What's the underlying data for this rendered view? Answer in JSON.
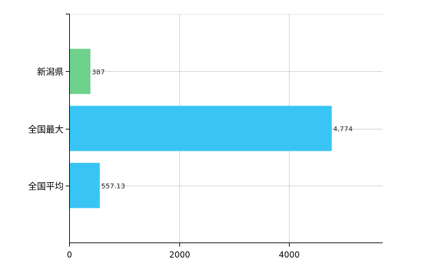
{
  "chart_data": {
    "type": "bar",
    "orientation": "horizontal",
    "categories": [
      "新潟県",
      "全国最大",
      "全国平均"
    ],
    "values": [
      387,
      4774,
      557.13
    ],
    "value_labels": [
      "387",
      "4,774",
      "557.13"
    ],
    "bar_colors": [
      "#6fd18c",
      "#38c4f5",
      "#38c4f5"
    ],
    "xlim": [
      0,
      5700
    ],
    "xticks": [
      0,
      2000,
      4000
    ],
    "xtick_labels": [
      "0",
      "2000",
      "4000"
    ],
    "grid": true,
    "legend": "none",
    "title": "",
    "xlabel": "",
    "ylabel": ""
  }
}
